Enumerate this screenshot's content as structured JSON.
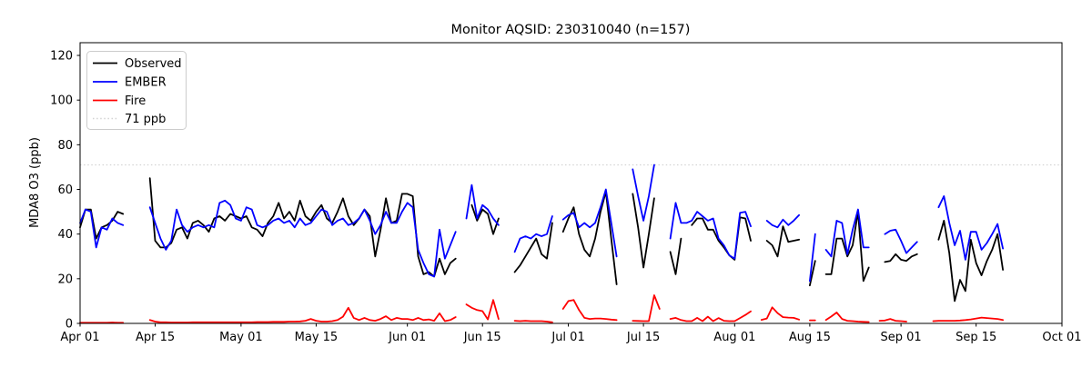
{
  "chart_data": {
    "type": "line",
    "title": "Monitor AQSID: 230310040 (n=157)",
    "xlabel": "",
    "ylabel": "MDA8 O3 (ppb)",
    "ylim": [
      0,
      125.7
    ],
    "y_ticks": [
      0,
      20,
      40,
      60,
      80,
      100,
      120
    ],
    "x_range_days": [
      0,
      183
    ],
    "x_start_date": "Apr 01",
    "x_ticks": [
      {
        "day": 0,
        "label": "Apr 01"
      },
      {
        "day": 14,
        "label": "Apr 15"
      },
      {
        "day": 30,
        "label": "May 01"
      },
      {
        "day": 44,
        "label": "May 15"
      },
      {
        "day": 61,
        "label": "Jun 01"
      },
      {
        "day": 75,
        "label": "Jun 15"
      },
      {
        "day": 91,
        "label": "Jul 01"
      },
      {
        "day": 105,
        "label": "Jul 15"
      },
      {
        "day": 122,
        "label": "Aug 01"
      },
      {
        "day": 136,
        "label": "Aug 15"
      },
      {
        "day": 153,
        "label": "Sep 01"
      },
      {
        "day": 167,
        "label": "Sep 15"
      },
      {
        "day": 183,
        "label": "Oct 01"
      }
    ],
    "grid": false,
    "legend_position": "upper-left",
    "threshold": {
      "value": 71,
      "label": "71 ppb",
      "color": "#d3d3d3",
      "style": "dotted"
    },
    "series": [
      {
        "name": "Observed",
        "color": "#000000",
        "values": [
          43,
          51,
          51,
          38,
          43,
          44,
          46,
          50,
          49,
          null,
          null,
          null,
          null,
          65,
          37,
          34,
          34,
          36,
          42,
          43,
          38,
          45,
          46,
          44,
          41,
          47,
          48,
          46,
          49,
          48,
          47,
          48,
          43,
          42,
          39,
          45,
          48,
          54,
          47,
          50,
          46,
          55,
          48,
          46,
          50,
          53,
          47,
          45,
          50,
          56,
          48,
          44,
          47,
          51,
          48,
          30,
          42,
          56,
          45,
          46,
          58,
          58,
          57,
          30,
          22,
          23,
          21,
          29,
          22,
          27,
          29,
          null,
          null,
          53,
          46,
          51,
          49,
          40,
          47,
          null,
          null,
          23,
          26,
          30,
          34,
          38,
          31,
          29,
          45,
          null,
          41,
          47,
          52,
          40,
          33,
          30,
          38,
          50,
          59,
          38,
          17.5,
          null,
          null,
          58,
          43,
          25,
          40,
          56,
          null,
          null,
          32,
          22,
          38,
          null,
          44,
          47,
          47,
          42,
          42,
          37,
          34,
          30.5,
          28.5,
          47.5,
          47,
          37,
          null,
          null,
          37,
          35,
          30,
          43.5,
          36.5,
          37,
          37.5,
          null,
          17,
          28,
          null,
          22,
          22,
          38,
          38,
          30,
          35,
          50,
          19,
          25,
          null,
          null,
          27.5,
          28,
          31,
          28.5,
          28,
          30,
          31,
          null,
          null,
          null,
          37.5,
          46,
          31.5,
          10,
          19.5,
          14.5,
          37.5,
          27,
          21.5,
          28,
          33,
          40,
          24
        ]
      },
      {
        "name": "EMBER",
        "color": "#0000ff",
        "values": [
          45,
          51,
          50,
          34,
          43,
          42,
          47,
          45,
          44,
          null,
          null,
          null,
          null,
          52,
          45,
          38,
          33,
          37,
          51,
          44,
          41,
          43,
          44,
          43,
          44,
          43,
          54,
          55,
          53,
          47,
          46,
          52,
          51,
          44,
          43,
          44,
          46,
          47,
          45,
          46,
          43,
          47,
          44,
          45,
          48,
          51,
          50,
          44,
          46,
          47,
          44,
          45,
          47,
          51,
          46,
          40,
          44,
          50,
          45,
          45,
          50,
          54,
          52,
          33,
          27,
          22,
          21,
          42,
          29,
          35,
          41,
          null,
          47,
          62,
          47,
          53,
          51,
          47,
          44,
          null,
          null,
          32,
          38,
          39,
          38,
          40,
          39,
          40,
          48,
          null,
          46.5,
          48.5,
          49.5,
          43,
          45,
          43,
          45,
          52,
          60,
          45,
          30,
          null,
          null,
          69,
          57,
          46,
          57,
          71,
          null,
          null,
          38,
          54,
          45,
          45,
          46,
          50,
          48,
          46,
          47,
          38,
          35,
          30.5,
          29,
          49.5,
          50,
          43.5,
          null,
          null,
          46,
          44,
          43,
          46.5,
          44,
          46,
          48.5,
          null,
          19,
          40,
          null,
          33,
          30,
          46,
          45,
          31,
          42,
          51,
          34,
          34,
          null,
          null,
          40,
          41.5,
          42,
          37,
          31.5,
          34,
          36.5,
          null,
          null,
          null,
          52,
          57,
          45,
          35,
          41.5,
          28.5,
          41,
          41,
          33,
          36,
          40,
          44.5,
          33.5
        ]
      },
      {
        "name": "Fire",
        "color": "#ff0000",
        "values": [
          0.3,
          0.3,
          0.3,
          0.3,
          0.3,
          0.3,
          0.4,
          0.3,
          0.3,
          null,
          null,
          null,
          null,
          1.5,
          0.8,
          0.5,
          0.5,
          0.4,
          0.4,
          0.4,
          0.4,
          0.5,
          0.5,
          0.5,
          0.5,
          0.5,
          0.5,
          0.5,
          0.5,
          0.5,
          0.5,
          0.5,
          0.5,
          0.6,
          0.6,
          0.6,
          0.7,
          0.7,
          0.7,
          0.8,
          0.8,
          0.9,
          1.2,
          2.0,
          1.2,
          0.8,
          0.8,
          1.0,
          1.5,
          3.0,
          7.0,
          2.5,
          1.5,
          2.5,
          1.5,
          1.2,
          2.0,
          3.2,
          1.5,
          2.5,
          2.0,
          2.0,
          1.5,
          2.5,
          1.5,
          1.8,
          1.2,
          4.5,
          1.0,
          1.5,
          2.8,
          null,
          8.5,
          7.0,
          6.0,
          5.5,
          1.8,
          10.5,
          2.0,
          null,
          null,
          1.2,
          1.0,
          1.2,
          1.0,
          1.0,
          1.0,
          0.8,
          0.5,
          null,
          6.5,
          10,
          10.5,
          6,
          2.5,
          2.0,
          2.2,
          2.2,
          2.0,
          1.7,
          1.5,
          null,
          null,
          1.2,
          1.1,
          1.0,
          1.0,
          12.6,
          6.5,
          null,
          2.0,
          2.5,
          1.5,
          1.0,
          1.0,
          2.5,
          1.0,
          3.0,
          1.0,
          2.4,
          1.2,
          1.0,
          1.0,
          2.4,
          3.8,
          5.4,
          null,
          1.6,
          2.2,
          7.2,
          4.6,
          2.8,
          2.6,
          2.5,
          1.7,
          null,
          1.4,
          1.4,
          null,
          1.5,
          3.1,
          4.9,
          2.0,
          1.2,
          1.0,
          0.8,
          0.7,
          0.6,
          null,
          1.2,
          1.3,
          2.0,
          1.2,
          1.0,
          0.8,
          null,
          null,
          null,
          null,
          1.0,
          1.2,
          1.2,
          1.2,
          1.2,
          1.3,
          1.5,
          1.8,
          2.2,
          2.6,
          2.4,
          2.2,
          2.0,
          1.5
        ]
      }
    ]
  }
}
